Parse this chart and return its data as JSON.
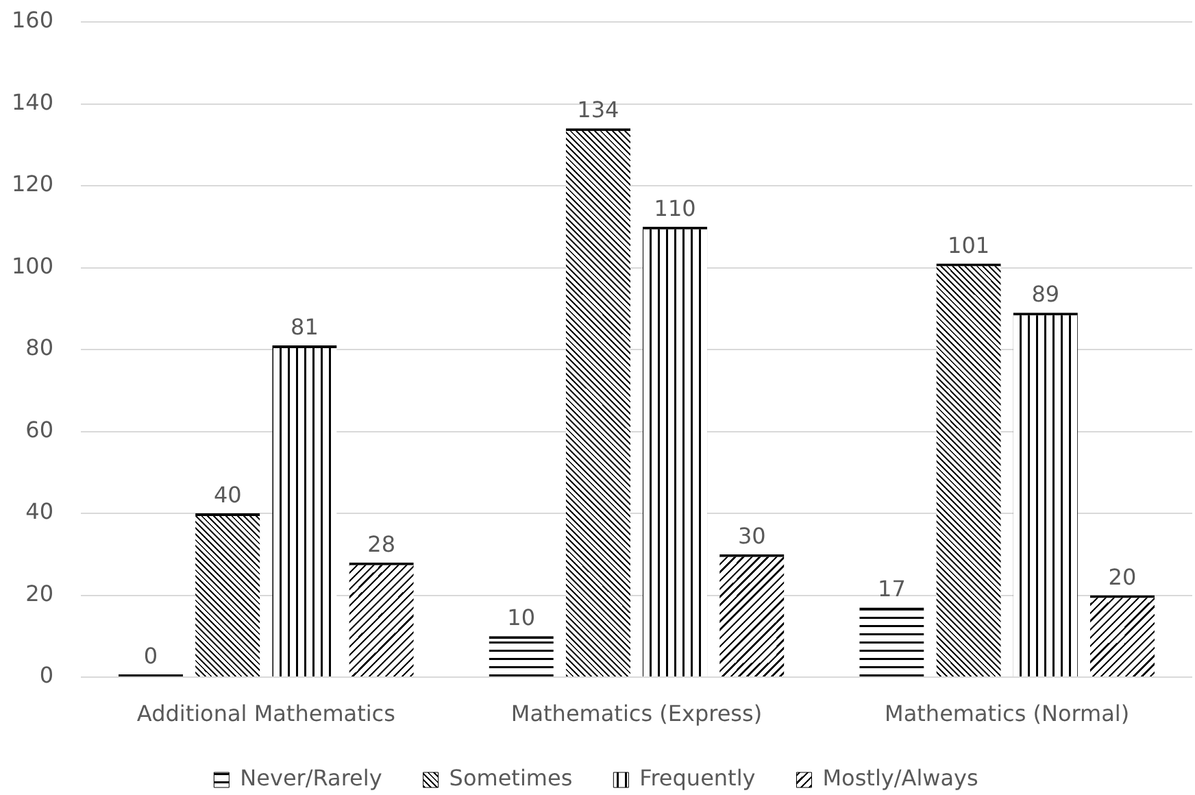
{
  "chart_data": {
    "type": "bar",
    "categories": [
      "Additional Mathematics",
      "Mathematics (Express)",
      "Mathematics (Normal)"
    ],
    "series": [
      {
        "name": "Never/Rarely",
        "color": "#000000",
        "values": [
          0,
          10,
          17
        ]
      },
      {
        "name": "Sometimes",
        "color": "#000000",
        "values": [
          40,
          134,
          101
        ]
      },
      {
        "name": "Frequently",
        "color": "#000000",
        "values": [
          81,
          110,
          89
        ]
      },
      {
        "name": "Mostly/Always",
        "color": "#000000",
        "values": [
          28,
          30,
          20
        ]
      }
    ],
    "ylim": [
      0,
      160
    ],
    "yticks": [
      0,
      20,
      40,
      60,
      80,
      100,
      120,
      140,
      160
    ],
    "grid": "y",
    "legend": "bottom",
    "data_labels": true
  }
}
